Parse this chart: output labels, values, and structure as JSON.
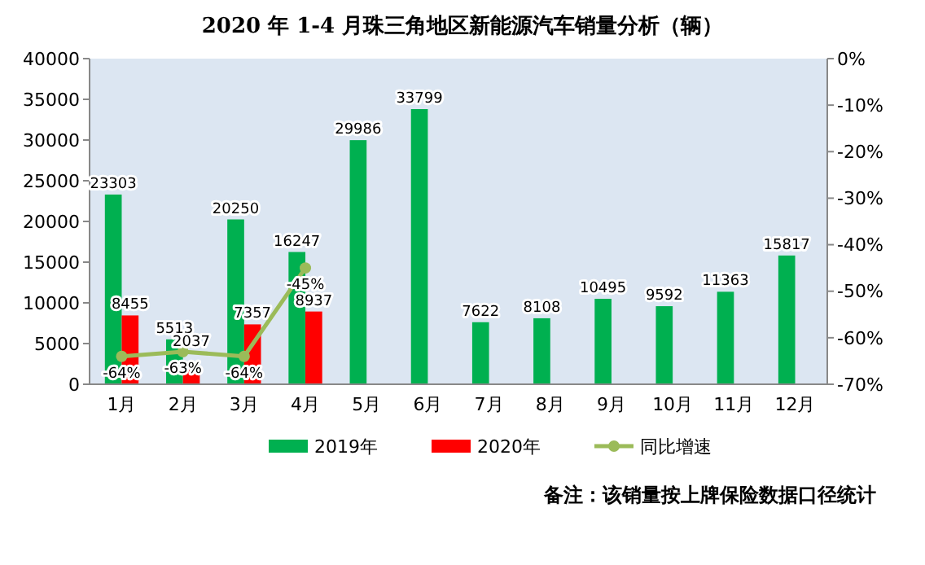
{
  "chart_data": {
    "type": "bar",
    "title": "2020 年 1-4 月珠三角地区新能源汽车销量分析（辆）",
    "categories": [
      "1月",
      "2月",
      "3月",
      "4月",
      "5月",
      "6月",
      "7月",
      "8月",
      "9月",
      "10月",
      "11月",
      "12月"
    ],
    "series": [
      {
        "name": "2019年",
        "color": "#00b050",
        "values": [
          23303,
          5513,
          20250,
          16247,
          29986,
          33799,
          7622,
          8108,
          10495,
          9592,
          11363,
          15817
        ]
      },
      {
        "name": "2020年",
        "color": "#ff0000",
        "values": [
          8455,
          2037,
          7357,
          8937,
          null,
          null,
          null,
          null,
          null,
          null,
          null,
          null
        ]
      },
      {
        "name": "同比增速",
        "type": "line",
        "axis": "y2",
        "color": "#9bbb59",
        "marker": "circle",
        "values": [
          -64,
          -63,
          -64,
          -45,
          null,
          null,
          null,
          null,
          null,
          null,
          null,
          null
        ],
        "value_labels": [
          "-64%",
          "-63%",
          "-64%",
          "-45%",
          null,
          null,
          null,
          null,
          null,
          null,
          null,
          null
        ]
      }
    ],
    "ylim": [
      0,
      40000
    ],
    "yticks": [
      0,
      5000,
      10000,
      15000,
      20000,
      25000,
      30000,
      35000,
      40000
    ],
    "y2lim": [
      -70,
      0
    ],
    "y2ticks": [
      {
        "value": 0,
        "label": "0%"
      },
      {
        "value": -10,
        "label": "-10%"
      },
      {
        "value": -20,
        "label": "-20%"
      },
      {
        "value": -30,
        "label": "-30%"
      },
      {
        "value": -40,
        "label": "-40%"
      },
      {
        "value": -50,
        "label": "-50%"
      },
      {
        "value": -60,
        "label": "-60%"
      },
      {
        "value": -70,
        "label": "-70%"
      }
    ],
    "data_labels": true,
    "legend": "bottom",
    "grid": false,
    "annotations": [
      "备注：该销量按上牌保险数据口径统计"
    ]
  }
}
